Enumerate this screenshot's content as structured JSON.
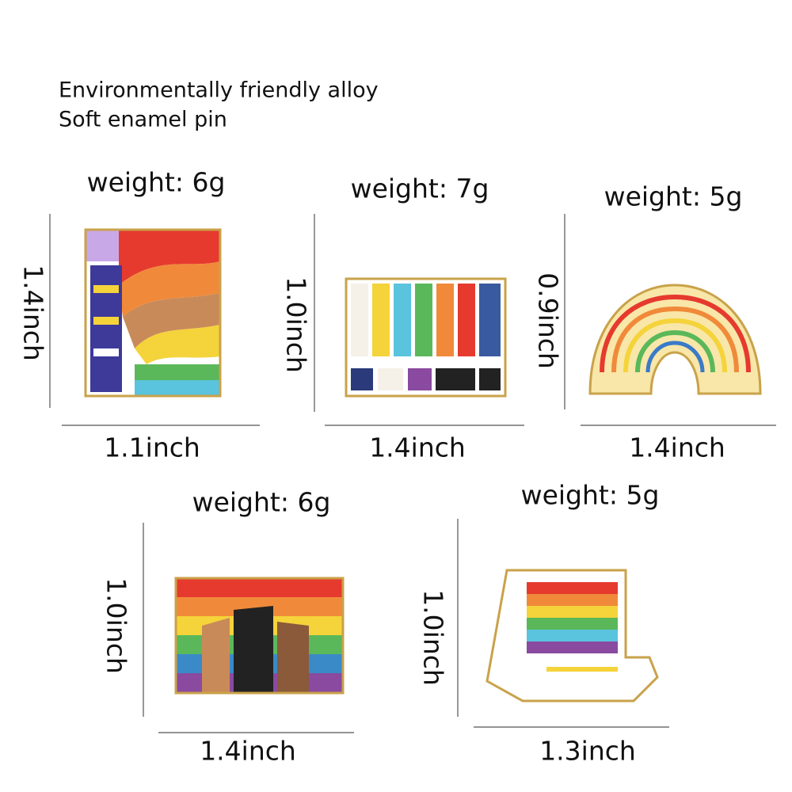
{
  "header": {
    "lines": [
      "Environmentally friendly alloy",
      "Soft enamel pin"
    ]
  },
  "pins": [
    {
      "weight": "weight: 6g",
      "height": "1.4inch",
      "width": "1.1inch"
    },
    {
      "weight": "weight: 7g",
      "height": "1.0inch",
      "width": "1.4inch"
    },
    {
      "weight": "weight: 5g",
      "height": "0.9inch",
      "width": "1.4inch"
    },
    {
      "weight": "weight: 6g",
      "height": "1.0inch",
      "width": "1.4inch"
    },
    {
      "weight": "weight: 5g",
      "height": "1.0inch",
      "width": "1.3inch"
    }
  ]
}
